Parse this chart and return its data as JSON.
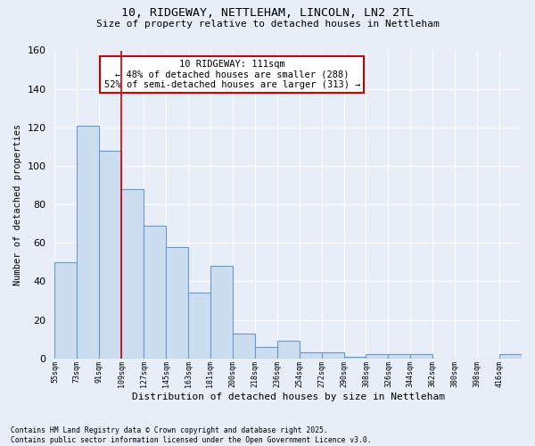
{
  "title1": "10, RIDGEWAY, NETTLEHAM, LINCOLN, LN2 2TL",
  "title2": "Size of property relative to detached houses in Nettleham",
  "xlabel": "Distribution of detached houses by size in Nettleham",
  "ylabel": "Number of detached properties",
  "categories": [
    "55sqm",
    "73sqm",
    "91sqm",
    "109sqm",
    "127sqm",
    "145sqm",
    "163sqm",
    "181sqm",
    "200sqm",
    "218sqm",
    "236sqm",
    "254sqm",
    "272sqm",
    "290sqm",
    "308sqm",
    "326sqm",
    "344sqm",
    "362sqm",
    "380sqm",
    "398sqm",
    "416sqm"
  ],
  "bar_heights": [
    50,
    121,
    108,
    88,
    69,
    58,
    34,
    48,
    13,
    6,
    9,
    3,
    3,
    1,
    2,
    2,
    2,
    0,
    0,
    0,
    2
  ],
  "bar_color": "#ccddf0",
  "bar_edge_color": "#6699cc",
  "background_color": "#e8eef8",
  "grid_color": "#ffffff",
  "annotation_text": "10 RIDGEWAY: 111sqm\n← 48% of detached houses are smaller (288)\n52% of semi-detached houses are larger (313) →",
  "annotation_box_color": "#ffffff",
  "annotation_box_edge_color": "#cc0000",
  "vline_color": "#cc0000",
  "vline_x": 3,
  "ylim": [
    0,
    160
  ],
  "yticks": [
    0,
    20,
    40,
    60,
    80,
    100,
    120,
    140,
    160
  ],
  "footnote": "Contains HM Land Registry data © Crown copyright and database right 2025.\nContains public sector information licensed under the Open Government Licence v3.0."
}
